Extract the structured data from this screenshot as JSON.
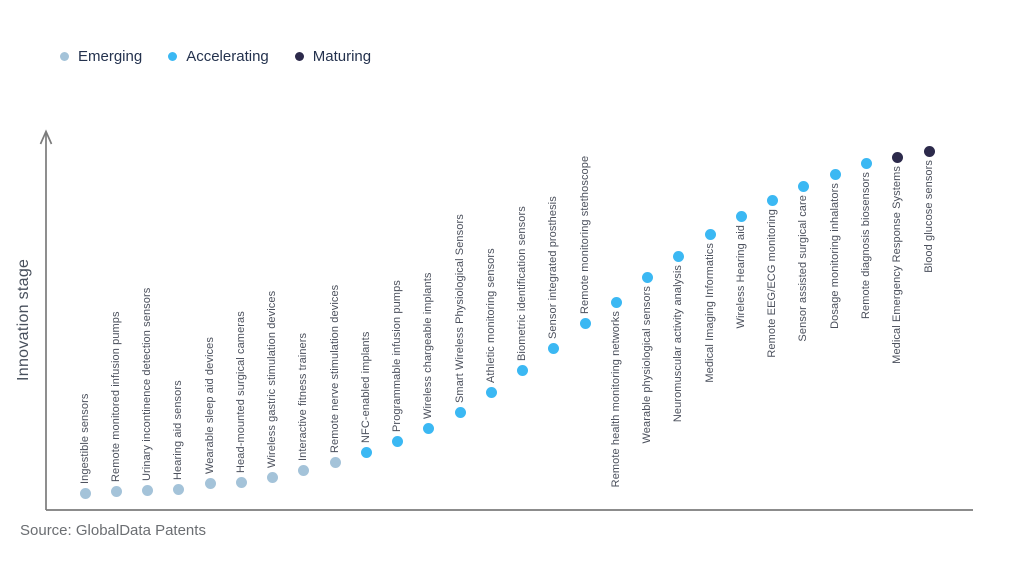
{
  "legend": {
    "items": [
      {
        "label": "Emerging",
        "stage": "emerging"
      },
      {
        "label": "Accelerating",
        "stage": "accelerating"
      },
      {
        "label": "Maturing",
        "stage": "maturing"
      }
    ]
  },
  "axis": {
    "y_label": "Innovation stage"
  },
  "source": {
    "text": "Source: GlobalData Patents"
  },
  "colors": {
    "emerging": "#a4c3d9",
    "accelerating": "#3bb8f3",
    "maturing": "#2c2a4b",
    "axis": "#7b7b7b",
    "label_text": "#4b505c",
    "legend_text": "#24324e",
    "axis_label_text": "#48505c",
    "source_text": "#6b6e72"
  },
  "chart_data": {
    "type": "scatter",
    "title": "",
    "xlabel": "",
    "ylabel": "Innovation stage",
    "legend_position": "top-left",
    "y_axis_note": "qualitative axis, innovation stage increases upward; level = estimated relative height",
    "points": [
      {
        "order": 1,
        "label": "Ingestible sensors",
        "stage": "emerging",
        "level": 17,
        "label_side": "above"
      },
      {
        "order": 2,
        "label": "Remote monitored infusion pumps",
        "stage": "emerging",
        "level": 19,
        "label_side": "above"
      },
      {
        "order": 3,
        "label": "Urinary incontinence detection sensors",
        "stage": "emerging",
        "level": 20,
        "label_side": "above"
      },
      {
        "order": 4,
        "label": "Hearing aid sensors",
        "stage": "emerging",
        "level": 21,
        "label_side": "above"
      },
      {
        "order": 5,
        "label": "Wearable sleep aid devices",
        "stage": "emerging",
        "level": 27,
        "label_side": "above"
      },
      {
        "order": 6,
        "label": "Head-mounted surgical cameras",
        "stage": "emerging",
        "level": 28,
        "label_side": "above"
      },
      {
        "order": 7,
        "label": "Wireless gastric stimulation devices",
        "stage": "emerging",
        "level": 33,
        "label_side": "above"
      },
      {
        "order": 8,
        "label": "Interactive fitness trainers",
        "stage": "emerging",
        "level": 40,
        "label_side": "above"
      },
      {
        "order": 9,
        "label": "Remote nerve stimulation devices",
        "stage": "emerging",
        "level": 48,
        "label_side": "above"
      },
      {
        "order": 10,
        "label": "NFC-enabled implants",
        "stage": "accelerating",
        "level": 58,
        "label_side": "above"
      },
      {
        "order": 11,
        "label": "Programmable infusion pumps",
        "stage": "accelerating",
        "level": 69,
        "label_side": "above"
      },
      {
        "order": 12,
        "label": "Wireless chargeable implants",
        "stage": "accelerating",
        "level": 82,
        "label_side": "above"
      },
      {
        "order": 13,
        "label": "Smart Wireless Physiological Sensors",
        "stage": "accelerating",
        "level": 98,
        "label_side": "above"
      },
      {
        "order": 14,
        "label": "Athletic monitoring sensors",
        "stage": "accelerating",
        "level": 118,
        "label_side": "above"
      },
      {
        "order": 15,
        "label": "Biometric identification sensors",
        "stage": "accelerating",
        "level": 140,
        "label_side": "above"
      },
      {
        "order": 16,
        "label": "Sensor integrated prosthesis",
        "stage": "accelerating",
        "level": 162,
        "label_side": "above"
      },
      {
        "order": 17,
        "label": "Remote monitoring stethoscope",
        "stage": "accelerating",
        "level": 187,
        "label_side": "above"
      },
      {
        "order": 18,
        "label": "Remote health monitoring networks",
        "stage": "accelerating",
        "level": 208,
        "label_side": "below"
      },
      {
        "order": 19,
        "label": "Wearable physiological sensors",
        "stage": "accelerating",
        "level": 233,
        "label_side": "below"
      },
      {
        "order": 20,
        "label": "Neuromuscular activity analysis",
        "stage": "accelerating",
        "level": 254,
        "label_side": "below"
      },
      {
        "order": 21,
        "label": "Medical Imaging Informatics",
        "stage": "accelerating",
        "level": 276,
        "label_side": "below"
      },
      {
        "order": 22,
        "label": "Wireless Hearing aid",
        "stage": "accelerating",
        "level": 294,
        "label_side": "below"
      },
      {
        "order": 23,
        "label": "Remote EEG/ECG monitoring",
        "stage": "accelerating",
        "level": 310,
        "label_side": "below"
      },
      {
        "order": 24,
        "label": "Sensor assisted surgical care",
        "stage": "accelerating",
        "level": 324,
        "label_side": "below"
      },
      {
        "order": 25,
        "label": "Dosage monitoring inhalators",
        "stage": "accelerating",
        "level": 336,
        "label_side": "below"
      },
      {
        "order": 26,
        "label": "Remote diagnosis biosensors",
        "stage": "accelerating",
        "level": 347,
        "label_side": "below"
      },
      {
        "order": 27,
        "label": "Medical Emergency Response Systems",
        "stage": "maturing",
        "level": 353,
        "label_side": "below"
      },
      {
        "order": 28,
        "label": "Blood glucose sensors",
        "stage": "maturing",
        "level": 359,
        "label_side": "below"
      }
    ]
  }
}
